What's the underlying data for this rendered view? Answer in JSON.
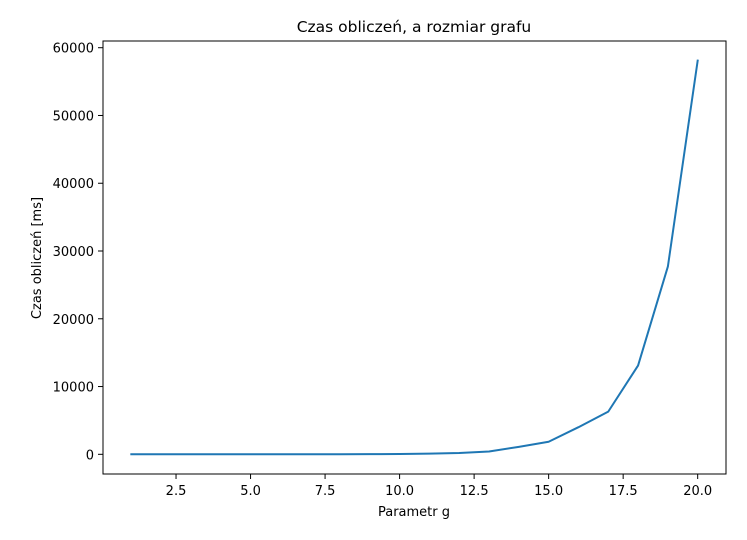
{
  "chart_data": {
    "type": "line",
    "title": "Czas obliczeń, a rozmiar grafu",
    "xlabel": "Parametr g",
    "ylabel": "Czas obliczeń [ms]",
    "xlim": [
      0.05,
      20.95
    ],
    "ylim": [
      -2905,
      60990
    ],
    "xticks": [
      2.5,
      5.0,
      7.5,
      10.0,
      12.5,
      15.0,
      17.5,
      20.0
    ],
    "xtick_labels": [
      "2.5",
      "5.0",
      "7.5",
      "10.0",
      "12.5",
      "15.0",
      "17.5",
      "20.0"
    ],
    "yticks": [
      0,
      10000,
      20000,
      30000,
      40000,
      50000,
      60000
    ],
    "ytick_labels": [
      "0",
      "10000",
      "20000",
      "30000",
      "40000",
      "50000",
      "60000"
    ],
    "grid": false,
    "series": [
      {
        "color": "#1f77b4",
        "x": [
          1,
          2,
          3,
          4,
          5,
          6,
          7,
          8,
          9,
          10,
          11,
          12,
          13,
          14,
          15,
          16,
          17,
          18,
          19,
          20
        ],
        "values": [
          0,
          0,
          0,
          0,
          0,
          1,
          3,
          8,
          20,
          45,
          100,
          200,
          420,
          1100,
          1850,
          4000,
          6300,
          13100,
          27700,
          58100
        ]
      }
    ]
  }
}
